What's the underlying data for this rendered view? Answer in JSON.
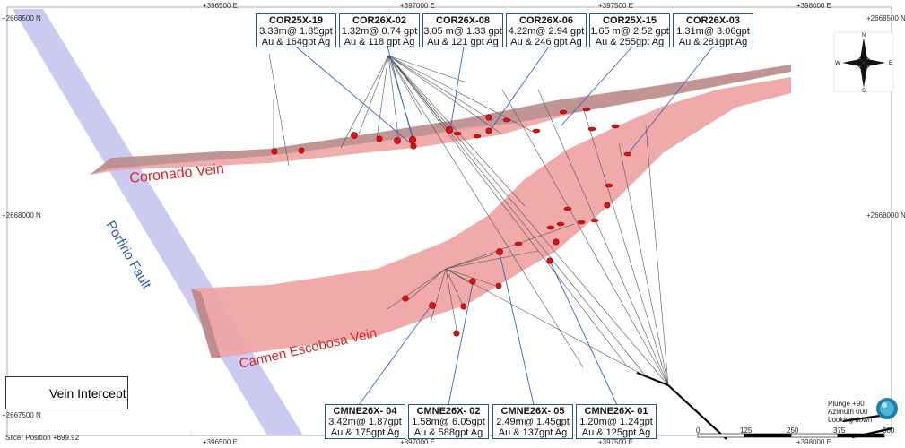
{
  "map": {
    "coords_top": [
      "+396500 E",
      "+397000 E",
      "+397500 E",
      "+398000 E"
    ],
    "coords_bottom": [
      "+396500 E",
      "+397000 E",
      "+397500 E",
      "+398000 E"
    ],
    "coords_left": [
      "+2668500 N",
      "+2668000 N",
      "+2667500 N"
    ],
    "coords_right": [
      "+2668500 N",
      "+2668000 N"
    ],
    "labels": {
      "coronado_vein": "Coronado Vein",
      "carmen_vein": "Carmen Escobosa Vein",
      "fault": "Porfirio Fault"
    },
    "colors": {
      "vein_fill": "#f0a3a3",
      "vein_dark": "#b98a8a",
      "fault_fill": "#c2c2ee",
      "intercept": "#dd1111",
      "leader": "#3a64c4",
      "callout_border": "#2f5496",
      "label_red": "#e02020",
      "label_blue": "#2e5aa8"
    }
  },
  "callouts_top": [
    {
      "hole": "COR25X-19",
      "line1": "3.33m@ 1.85gpt",
      "line2": "Au & 164gpt Ag"
    },
    {
      "hole": "COR26X-02",
      "line1": "1.32m@ 0.74 gpt",
      "line2": "Au & 118 gpt Ag"
    },
    {
      "hole": "COR26X-08",
      "line1": "3.05 m@ 1.33 gpt",
      "line2": "Au & 121 gpt Ag"
    },
    {
      "hole": "COR26X-06",
      "line1": "4.22m@ 2.94 gpt",
      "line2": "Au & 246 gpt Ag"
    },
    {
      "hole": "COR25X-15",
      "line1": "1.65 m@ 2.52 gpt",
      "line2": "Au & 255gpt Ag"
    },
    {
      "hole": "COR26X-03",
      "line1": "1.31m@ 3.06gpt",
      "line2": "Au & 281gpt Ag"
    }
  ],
  "callouts_bottom": [
    {
      "hole": "CMNE26X- 04",
      "line1": "3.42m@ 1.87gpt",
      "line2": "Au & 175gpt Ag"
    },
    {
      "hole": "CMNE26X- 02",
      "line1": "1.58m@ 6.05gpt",
      "line2": "Au & 588gpt Ag"
    },
    {
      "hole": "CMNE26X- 05",
      "line1": "2.49m@ 1.45gpt",
      "line2": "Au & 137gpt Ag"
    },
    {
      "hole": "CMNE26X- 01",
      "line1": "1.20m@ 1.24gpt",
      "line2": "Au & 125gpt Ag"
    }
  ],
  "legend": {
    "label": "Vein Intercept"
  },
  "slicer": "Slicer Position +699.92",
  "view": {
    "plunge": "Plunge +90",
    "azimuth": "Azimuth 000",
    "looking": "Looking down"
  },
  "scale": {
    "ticks": [
      "0",
      "125",
      "250",
      "375",
      "500"
    ]
  },
  "compass": {
    "n": "N",
    "s": "S",
    "e": "E",
    "w": "W"
  }
}
